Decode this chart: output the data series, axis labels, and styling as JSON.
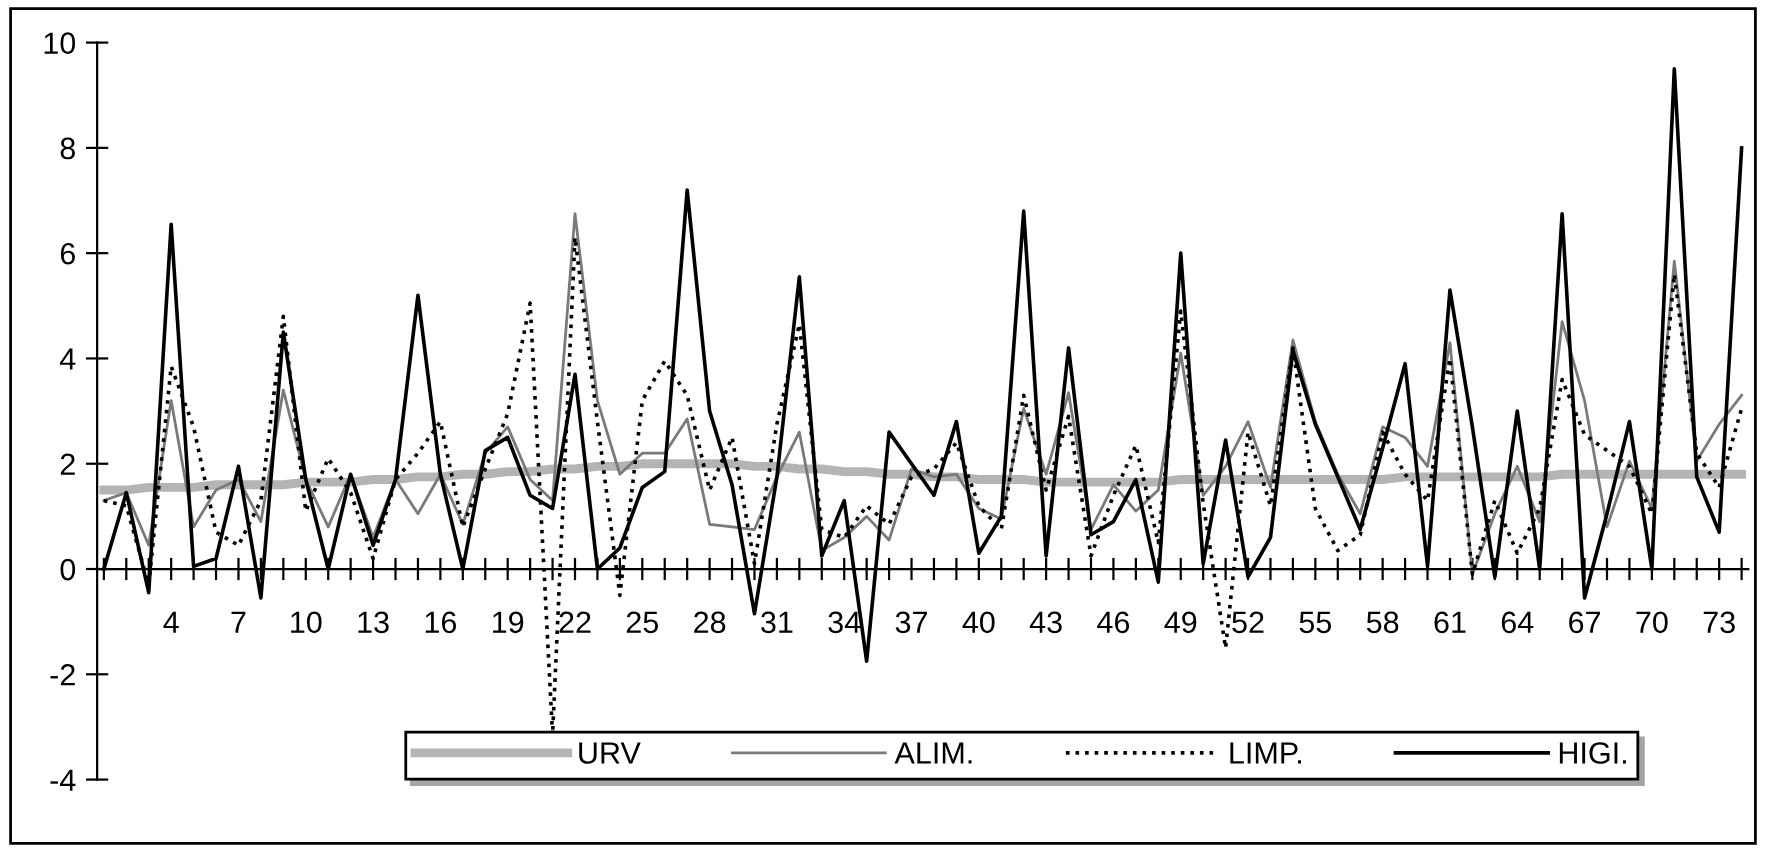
{
  "chart_data": {
    "type": "line",
    "categories": [
      null,
      null,
      null,
      "4",
      null,
      null,
      "7",
      null,
      null,
      "10",
      null,
      null,
      "13",
      null,
      null,
      "16",
      null,
      null,
      "19",
      null,
      null,
      "22",
      null,
      null,
      "25",
      null,
      null,
      "28",
      null,
      null,
      "31",
      null,
      null,
      "34",
      null,
      null,
      "37",
      null,
      null,
      "40",
      null,
      null,
      "43",
      null,
      null,
      "46",
      null,
      null,
      "49",
      null,
      null,
      "52",
      null,
      null,
      "55",
      null,
      null,
      "58",
      null,
      null,
      "61",
      null,
      null,
      "64",
      null,
      null,
      "67",
      null,
      null,
      "70",
      null,
      null,
      "73",
      null
    ],
    "series": [
      {
        "name": "URV",
        "color": "#b4b4b4",
        "line_style": "solid",
        "values": [
          1.5,
          1.5,
          1.55,
          1.55,
          1.55,
          1.6,
          1.6,
          1.6,
          1.6,
          1.65,
          1.65,
          1.65,
          1.7,
          1.7,
          1.75,
          1.75,
          1.8,
          1.8,
          1.85,
          1.85,
          1.9,
          1.9,
          1.95,
          1.95,
          2.0,
          2.0,
          2.0,
          2.0,
          2.0,
          1.95,
          1.95,
          1.9,
          1.9,
          1.85,
          1.85,
          1.8,
          1.8,
          1.75,
          1.75,
          1.7,
          1.7,
          1.7,
          1.65,
          1.65,
          1.65,
          1.65,
          1.65,
          1.65,
          1.7,
          1.7,
          1.7,
          1.7,
          1.7,
          1.7,
          1.7,
          1.7,
          1.7,
          1.7,
          1.75,
          1.75,
          1.75,
          1.75,
          1.75,
          1.75,
          1.75,
          1.8,
          1.8,
          1.8,
          1.8,
          1.8,
          1.8,
          1.8,
          1.8,
          1.8
        ]
      },
      {
        "name": "ALIM.",
        "color": "#7a7a7a",
        "line_style": "solid",
        "values": [
          1.3,
          1.45,
          0.45,
          3.2,
          0.8,
          1.5,
          1.7,
          0.9,
          3.4,
          1.7,
          0.8,
          1.8,
          0.6,
          1.7,
          1.05,
          1.8,
          0.85,
          2.2,
          2.7,
          1.7,
          1.3,
          6.75,
          3.2,
          1.8,
          2.2,
          2.2,
          2.85,
          0.85,
          0.8,
          0.75,
          1.75,
          2.6,
          0.35,
          0.6,
          1.0,
          0.55,
          1.9,
          1.75,
          1.8,
          1.15,
          0.95,
          3.05,
          1.8,
          3.35,
          0.75,
          1.6,
          1.1,
          1.5,
          4.1,
          1.4,
          1.95,
          2.8,
          1.55,
          4.35,
          2.8,
          1.8,
          1.05,
          2.7,
          2.5,
          1.95,
          4.3,
          -0.1,
          1.05,
          1.95,
          0.9,
          4.7,
          3.2,
          0.8,
          2.05,
          1.15,
          5.85,
          2.05,
          2.75,
          3.3
        ]
      },
      {
        "name": "LIMP.",
        "color": "#000000",
        "line_style": "dotted",
        "values": [
          1.3,
          1.2,
          -0.3,
          3.85,
          2.7,
          0.7,
          0.45,
          1.3,
          4.8,
          1.1,
          2.1,
          1.45,
          0.2,
          1.7,
          2.2,
          2.8,
          0.8,
          1.9,
          2.95,
          5.05,
          -3.15,
          6.3,
          2.8,
          -0.5,
          3.2,
          3.95,
          3.3,
          1.5,
          2.5,
          0.1,
          2.75,
          4.65,
          0.75,
          0.6,
          1.2,
          0.85,
          1.75,
          1.9,
          2.4,
          1.2,
          0.75,
          3.3,
          1.5,
          2.9,
          0.25,
          1.4,
          2.35,
          0.5,
          4.9,
          1.25,
          -1.5,
          2.6,
          1.2,
          4.2,
          1.15,
          0.35,
          0.65,
          2.6,
          1.8,
          1.3,
          4.0,
          -0.1,
          1.3,
          0.3,
          1.15,
          3.6,
          2.55,
          2.25,
          1.95,
          1.05,
          5.6,
          2.2,
          1.55,
          3.05
        ]
      },
      {
        "name": "HIGI.",
        "color": "#000000",
        "line_style": "solid",
        "values": [
          0,
          1.45,
          -0.45,
          6.55,
          0.05,
          0.2,
          1.95,
          -0.55,
          4.5,
          1.7,
          0,
          1.8,
          0.45,
          1.7,
          5.2,
          1.8,
          0,
          2.25,
          2.5,
          1.4,
          1.15,
          3.7,
          0,
          0.4,
          1.55,
          1.85,
          7.2,
          3.0,
          1.6,
          -0.85,
          1.75,
          5.55,
          0.25,
          1.3,
          -1.75,
          2.6,
          2.0,
          1.4,
          2.8,
          0.3,
          1.0,
          6.8,
          0.25,
          4.2,
          0.65,
          0.9,
          1.7,
          -0.25,
          6.0,
          0.1,
          2.45,
          -0.15,
          0.6,
          4.15,
          2.75,
          1.75,
          0.75,
          2.3,
          3.9,
          0.05,
          5.3,
          2.7,
          -0.15,
          3.0,
          0,
          6.75,
          -0.55,
          1.05,
          2.8,
          0,
          9.5,
          1.75,
          0.7,
          8.0
        ]
      }
    ],
    "ylim": [
      -4,
      10
    ],
    "yticks": [
      -4,
      -2,
      0,
      2,
      4,
      6,
      8,
      10
    ],
    "grid": false,
    "legend": "bottom",
    "marker": "none"
  }
}
